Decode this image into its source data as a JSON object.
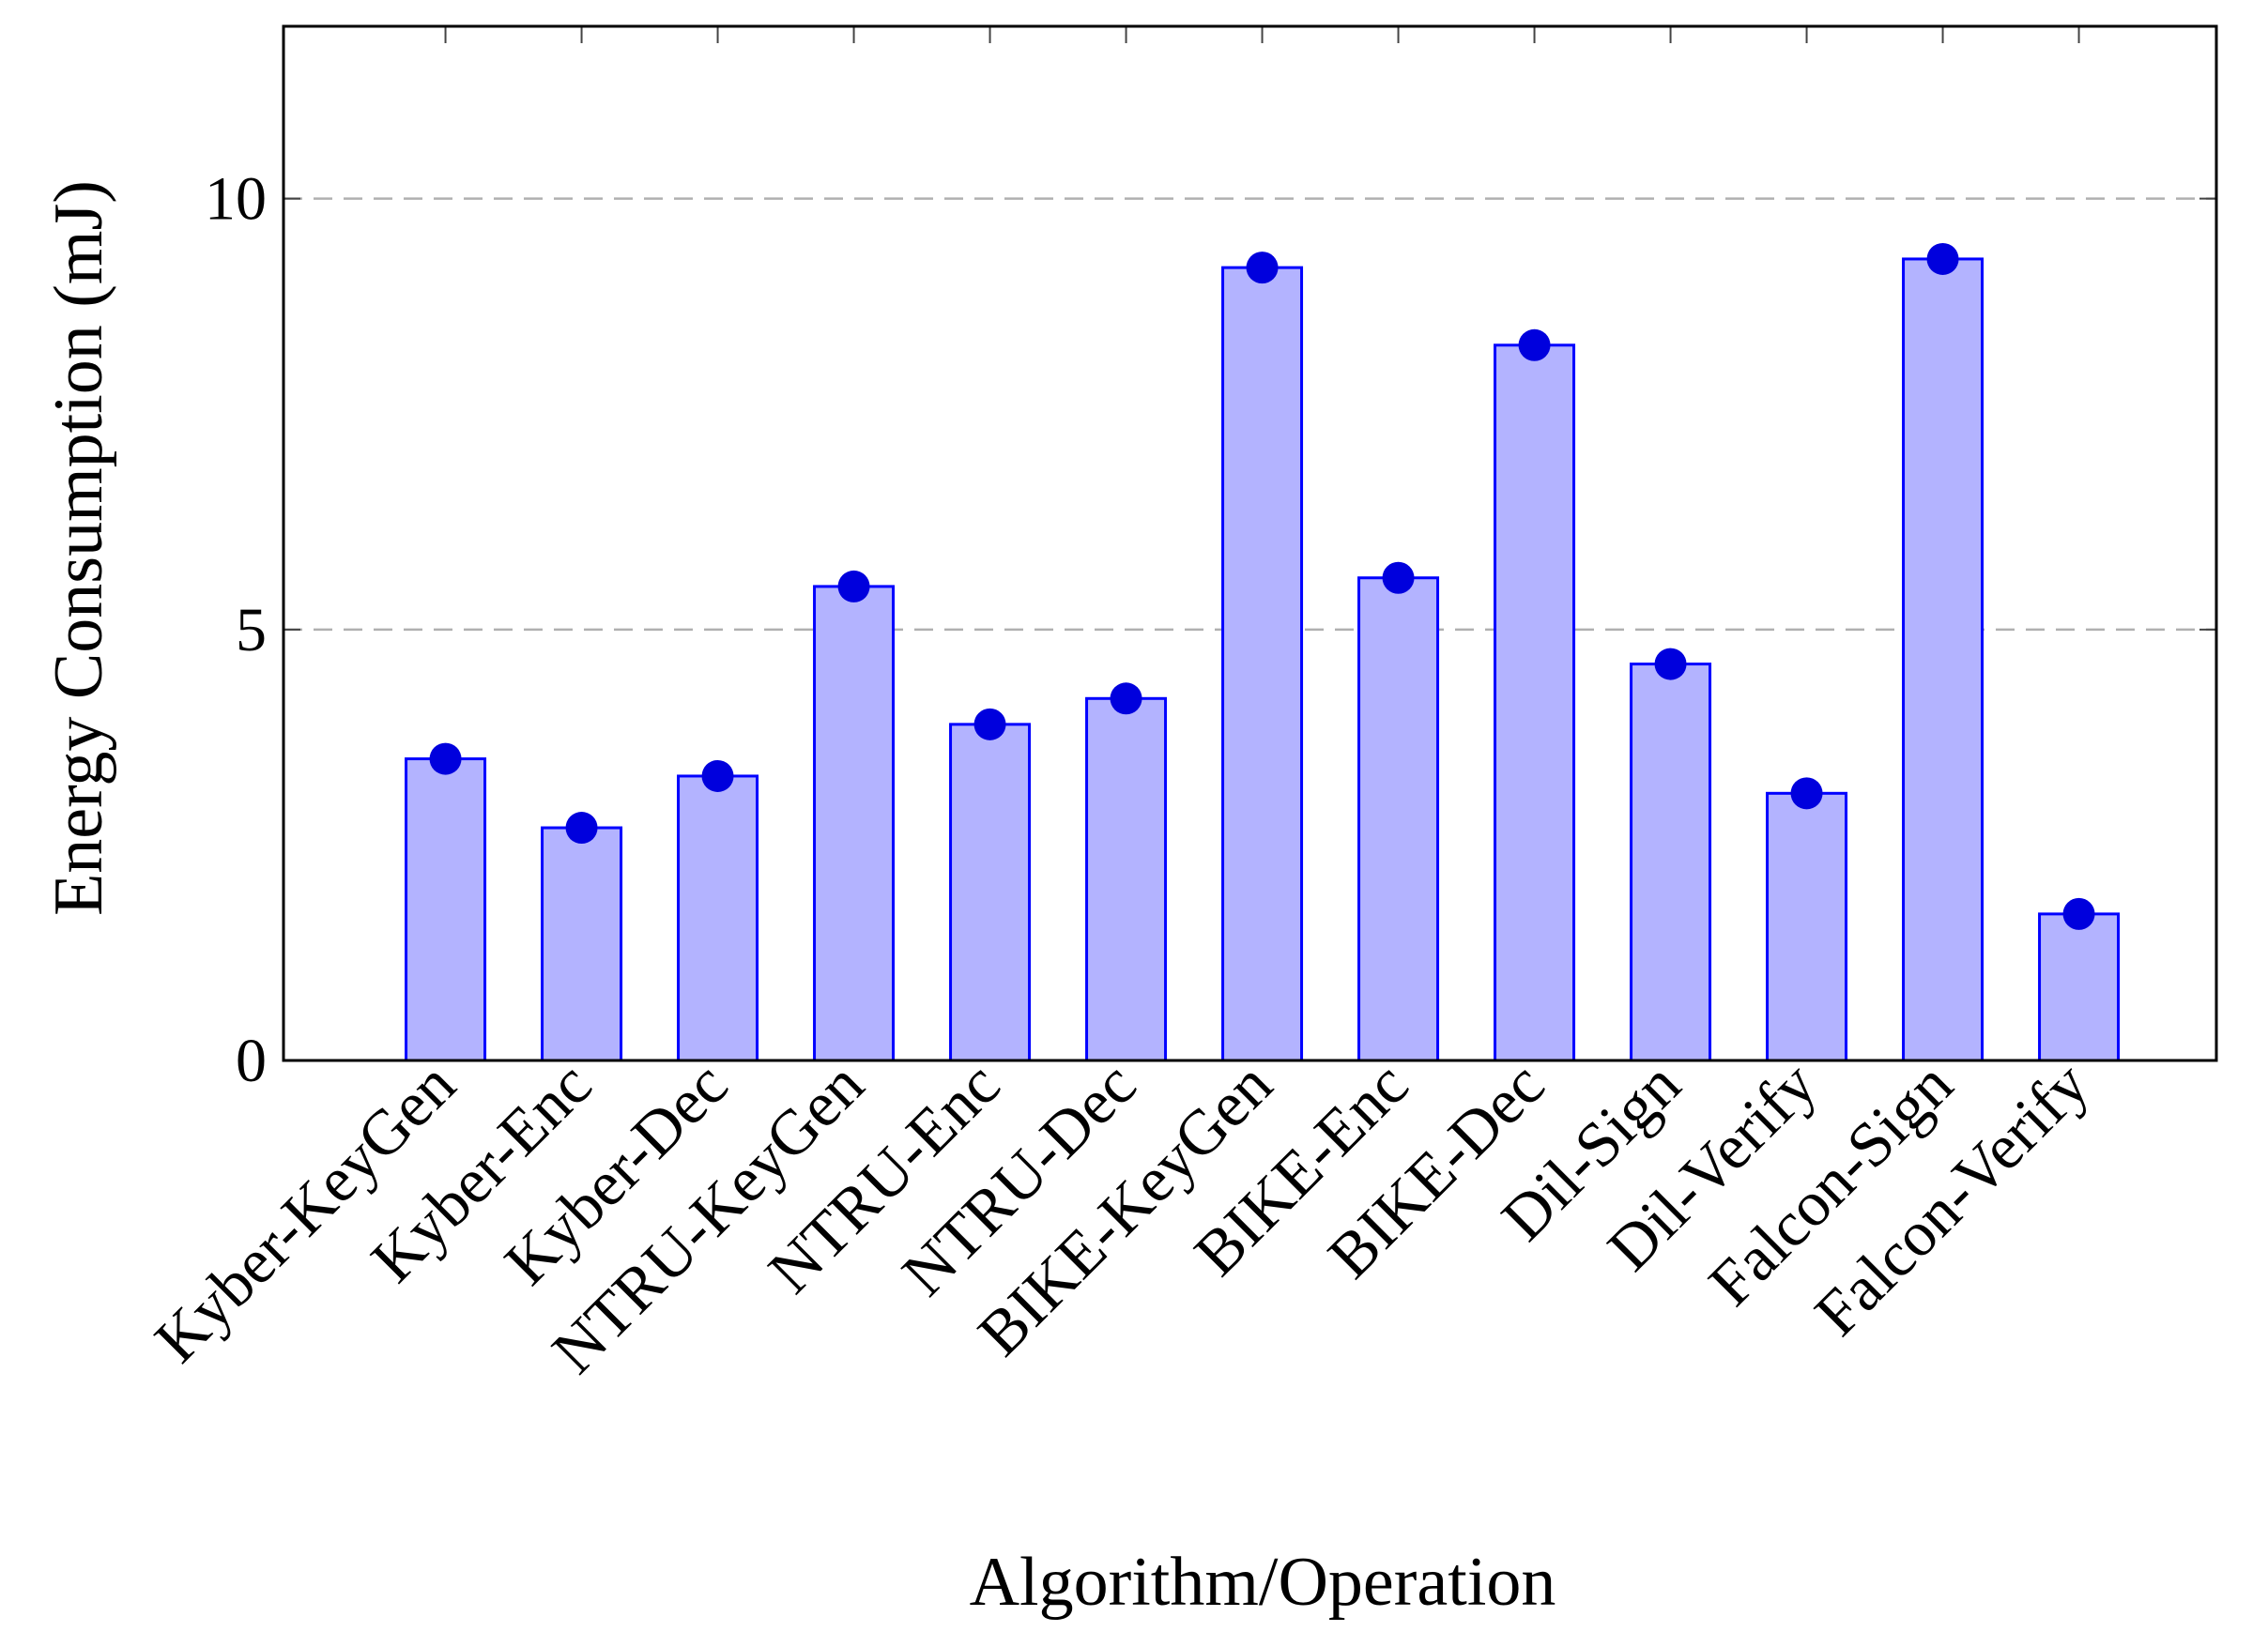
{
  "chart_data": {
    "type": "bar",
    "x_label": "Algorithm/Operation",
    "y_label": "Energy Consumption (mJ)",
    "categories": [
      "Kyber-KeyGen",
      "Kyber-Enc",
      "Kyber-Dec",
      "NTRU-KeyGen",
      "NTRU-Enc",
      "NTRU-Dec",
      "BIKE-KeyGen",
      "BIKE-Enc",
      "BIKE-Dec",
      "Dil-Sign",
      "Dil-Verify",
      "Falcon-Sign",
      "Falcon-Verify"
    ],
    "values": [
      3.5,
      2.7,
      3.3,
      5.5,
      3.9,
      4.2,
      9.2,
      5.6,
      8.3,
      4.6,
      3.1,
      9.3,
      1.7
    ],
    "color": "#b3b3ff",
    "edge_color": "#0000ff",
    "marker_color": "#0000dd",
    "ylim": [
      0,
      12
    ],
    "yticks": [
      0,
      5,
      10
    ],
    "grid": true
  }
}
